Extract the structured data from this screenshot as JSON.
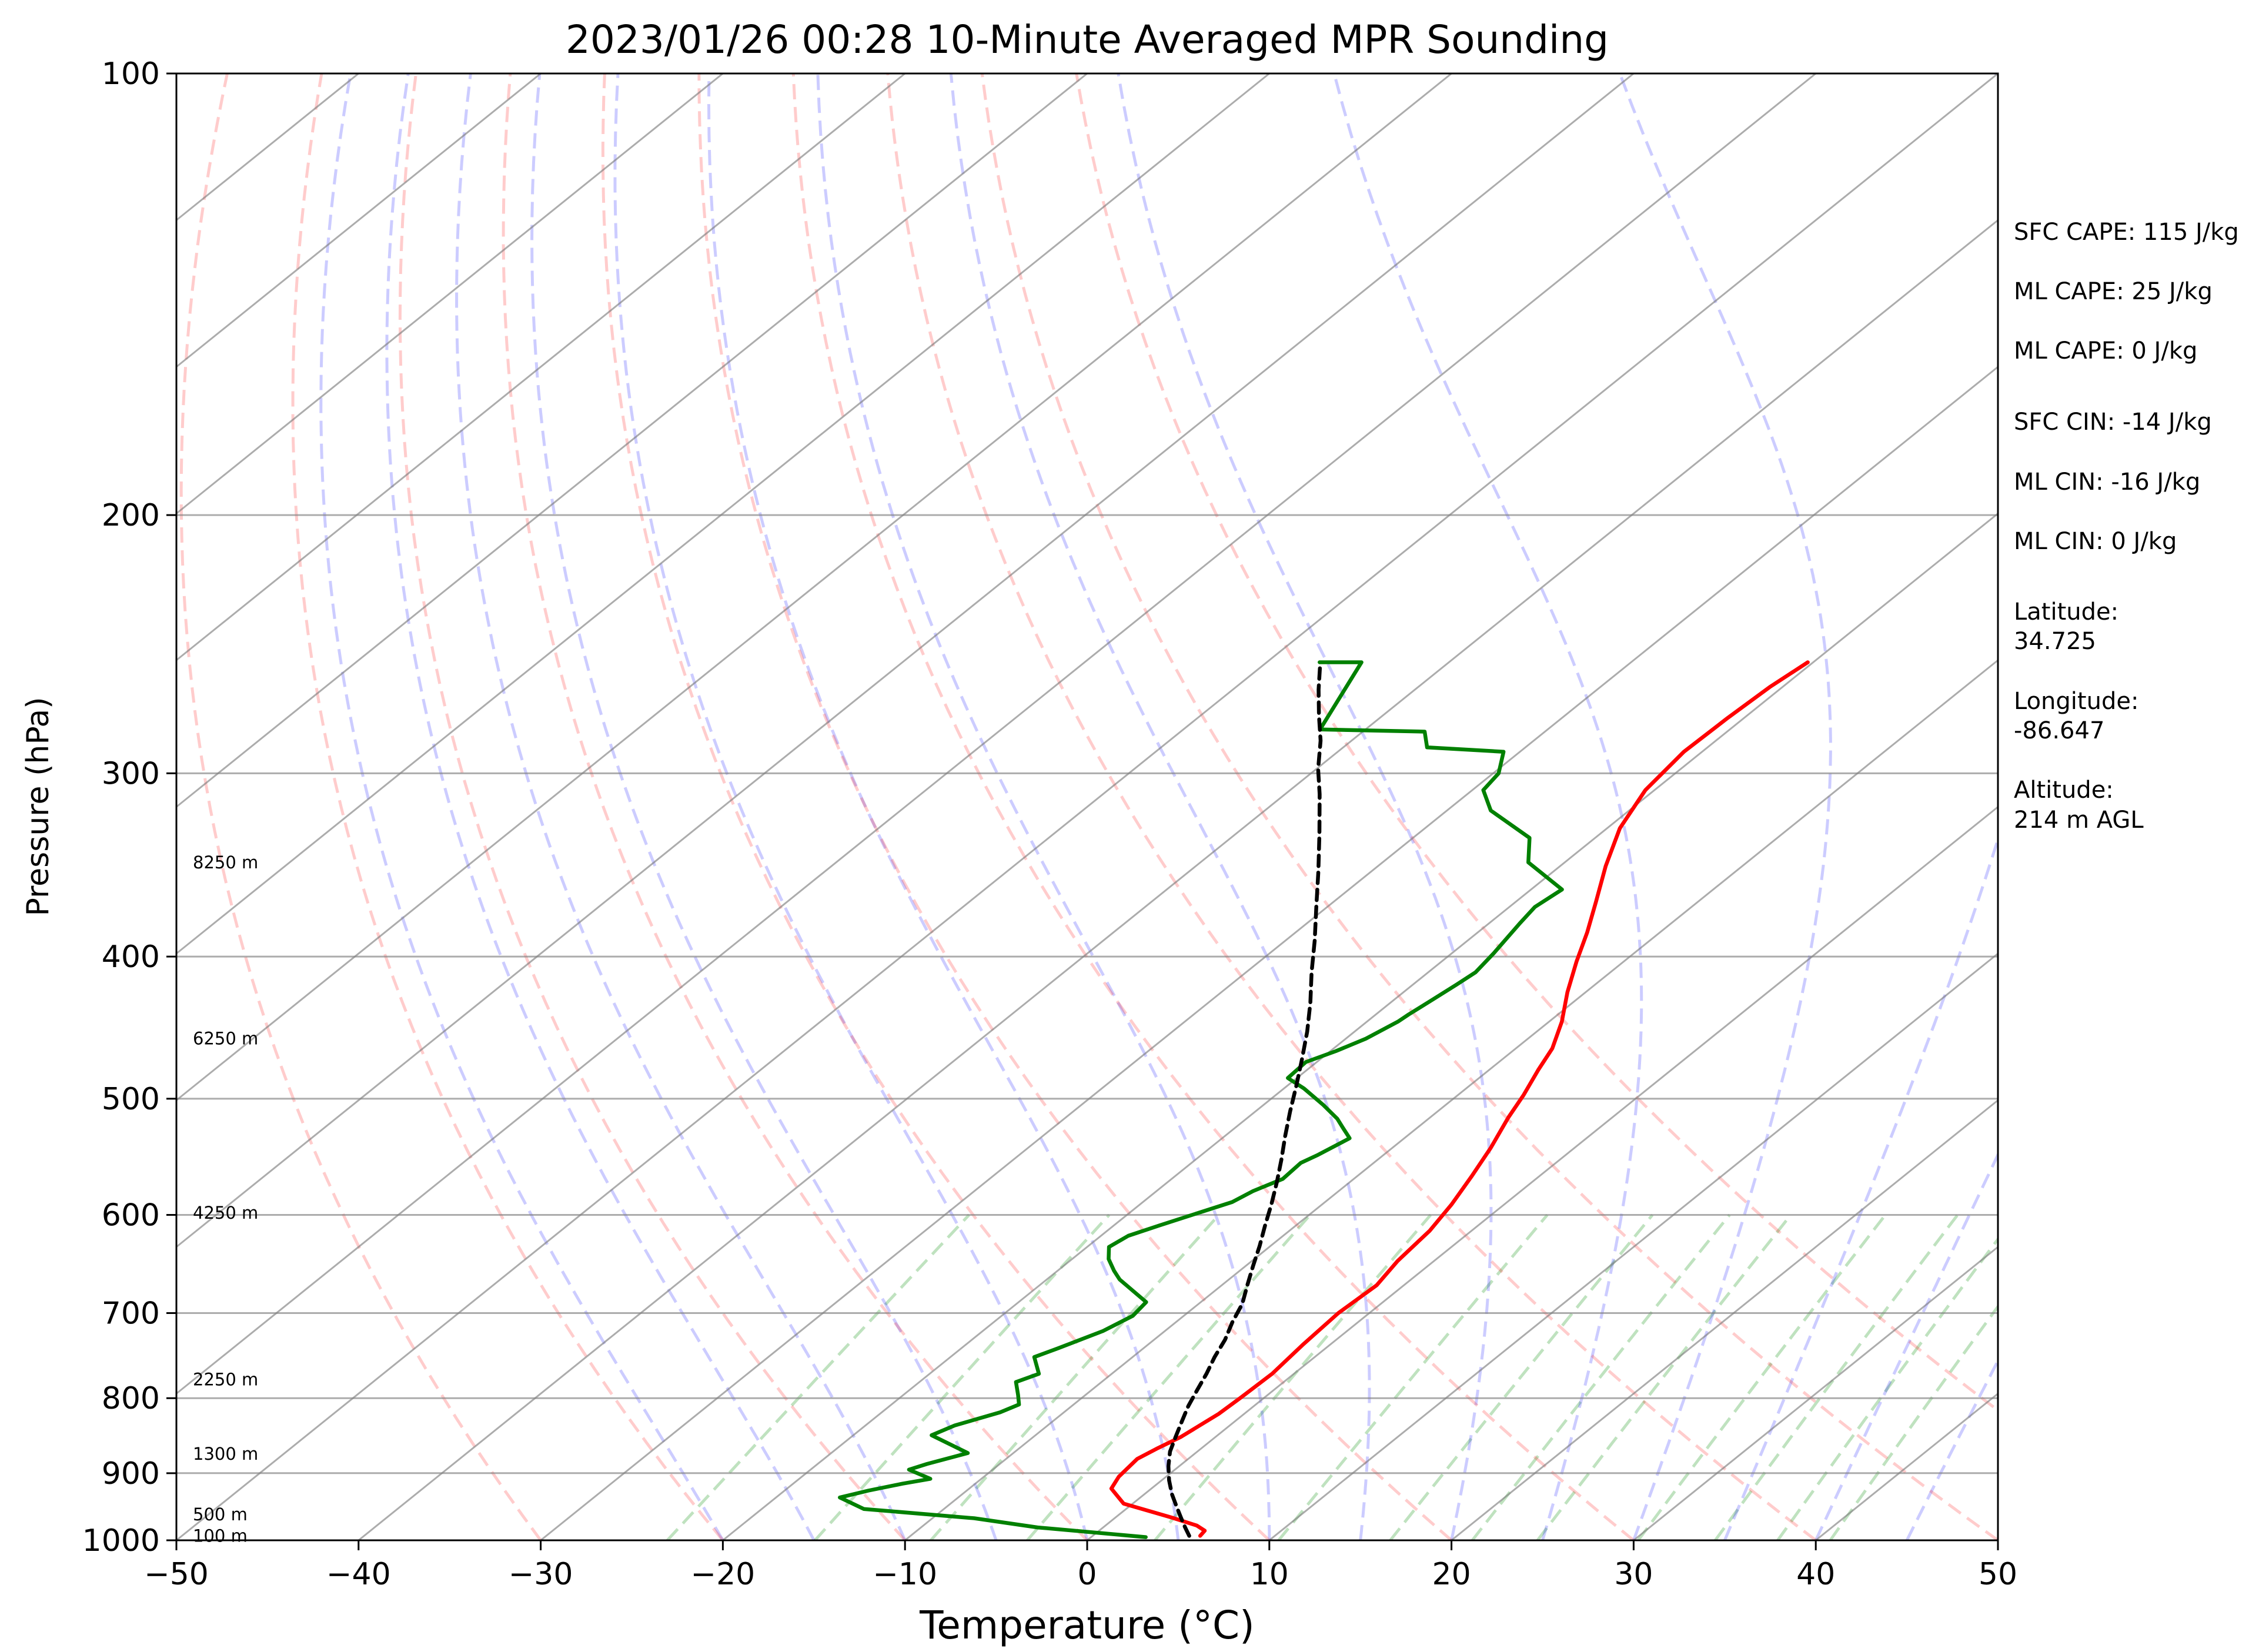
{
  "chart_data": {
    "type": "line",
    "title": "2023/01/26 00:28 10-Minute Averaged MPR Sounding",
    "xlabel": "Temperature (°C)",
    "ylabel": "Pressure (hPa)",
    "xlim": [
      -50,
      50
    ],
    "ylim": [
      1000,
      100
    ],
    "y_scale": "log",
    "grid": true,
    "x_ticks": [
      "−50",
      "−40",
      "−30",
      "−20",
      "−10",
      "0",
      "10",
      "20",
      "30",
      "40",
      "50"
    ],
    "y_ticks": [
      "100",
      "200",
      "300",
      "400",
      "500",
      "600",
      "700",
      "800",
      "900",
      "1000"
    ],
    "height_labels": [
      {
        "text": "8250 m",
        "pressure": 345
      },
      {
        "text": "6250 m",
        "pressure": 455
      },
      {
        "text": "4250 m",
        "pressure": 598
      },
      {
        "text": "2250 m",
        "pressure": 777
      },
      {
        "text": "1300 m",
        "pressure": 873
      },
      {
        "text": "500 m",
        "pressure": 960
      },
      {
        "text": "100 m",
        "pressure": 993
      }
    ],
    "info": [
      "SFC CAPE: 115 J/kg",
      "ML CAPE: 25 J/kg",
      "ML CAPE: 0 J/kg",
      "SFC CIN: -14 J/kg",
      "ML CIN: -16 J/kg",
      "ML CIN: 0 J/kg",
      "Latitude:",
      "34.725",
      "Longitude:",
      "-86.647",
      "Altitude:",
      "214 m AGL"
    ],
    "series": [
      {
        "id": "temperature",
        "color": "#ff0000",
        "points": [
          [
            5.9,
            993
          ],
          [
            5.8,
            985
          ],
          [
            5.0,
            977
          ],
          [
            3.1,
            965
          ],
          [
            -0.5,
            944
          ],
          [
            -2.2,
            922
          ],
          [
            -2.6,
            905
          ],
          [
            -2.8,
            880
          ],
          [
            -2.4,
            865
          ],
          [
            -1.9,
            850
          ],
          [
            -1.4,
            820
          ],
          [
            -1.3,
            800
          ],
          [
            -1.2,
            770
          ],
          [
            -1.5,
            735
          ],
          [
            -1.7,
            700
          ],
          [
            -1.5,
            670
          ],
          [
            -2.0,
            645
          ],
          [
            -2.3,
            615
          ],
          [
            -2.9,
            590
          ],
          [
            -3.7,
            565
          ],
          [
            -4.6,
            540
          ],
          [
            -5.7,
            515
          ],
          [
            -6.4,
            497
          ],
          [
            -7.3,
            478
          ],
          [
            -8.0,
            462
          ],
          [
            -9.3,
            443
          ],
          [
            -11.0,
            423
          ],
          [
            -12.6,
            403
          ],
          [
            -14.0,
            385
          ],
          [
            -15.6,
            367
          ],
          [
            -17.5,
            347
          ],
          [
            -19.3,
            327
          ],
          [
            -20.5,
            308
          ],
          [
            -21.0,
            290
          ],
          [
            -20.9,
            275
          ],
          [
            -20.7,
            262
          ],
          [
            -20.3,
            252
          ]
        ]
      },
      {
        "id": "dewpoint",
        "color": "#008000",
        "points": [
          [
            3.0,
            995
          ],
          [
            -3.6,
            980
          ],
          [
            -7.7,
            966
          ],
          [
            -14.4,
            952
          ],
          [
            -16.5,
            935
          ],
          [
            -15.4,
            925
          ],
          [
            -14.0,
            915
          ],
          [
            -12.8,
            908
          ],
          [
            -14.6,
            895
          ],
          [
            -14.0,
            887
          ],
          [
            -12.5,
            872
          ],
          [
            -15.7,
            848
          ],
          [
            -15.1,
            835
          ],
          [
            -13.5,
            818
          ],
          [
            -13.0,
            808
          ],
          [
            -13.7,
            796
          ],
          [
            -14.7,
            780
          ],
          [
            -14.0,
            770
          ],
          [
            -15.4,
            750
          ],
          [
            -14.7,
            740
          ],
          [
            -13.4,
            720
          ],
          [
            -12.8,
            703
          ],
          [
            -13.0,
            688
          ],
          [
            -16.0,
            664
          ],
          [
            -16.9,
            655
          ],
          [
            -18.0,
            643
          ],
          [
            -18.8,
            631
          ],
          [
            -18.5,
            620
          ],
          [
            -17.5,
            610
          ],
          [
            -15.1,
            588
          ],
          [
            -14.7,
            578
          ],
          [
            -13.9,
            567
          ],
          [
            -14.0,
            553
          ],
          [
            -13.6,
            546
          ],
          [
            -13.0,
            532
          ],
          [
            -14.0,
            524
          ],
          [
            -15.0,
            516
          ],
          [
            -16.7,
            505
          ],
          [
            -18.9,
            492
          ],
          [
            -20.5,
            484
          ],
          [
            -20.6,
            472
          ],
          [
            -19.7,
            464
          ],
          [
            -18.9,
            455
          ],
          [
            -18.3,
            443
          ],
          [
            -18.2,
            438
          ],
          [
            -17.9,
            428
          ],
          [
            -17.6,
            418
          ],
          [
            -17.4,
            410
          ],
          [
            -17.7,
            398
          ],
          [
            -18.3,
            380
          ],
          [
            -18.6,
            370
          ],
          [
            -18.3,
            360
          ],
          [
            -22.0,
            345
          ],
          [
            -23.6,
            332
          ],
          [
            -27.6,
            318
          ],
          [
            -29.4,
            308
          ],
          [
            -29.7,
            300
          ],
          [
            -30.9,
            290
          ],
          [
            -35.4,
            288
          ],
          [
            -36.6,
            281
          ],
          [
            -42.5,
            280
          ],
          [
            -44.8,
            252
          ],
          [
            -47.1,
            252
          ]
        ]
      },
      {
        "id": "parcel",
        "color": "#000000",
        "dash": true,
        "points": [
          [
            5.3,
            993
          ],
          [
            4.5,
            980
          ],
          [
            3.6,
            965
          ],
          [
            2.7,
            950
          ],
          [
            1.5,
            930
          ],
          [
            0.4,
            910
          ],
          [
            -0.6,
            890
          ],
          [
            -1.5,
            870
          ],
          [
            -2.2,
            850
          ],
          [
            -2.9,
            830
          ],
          [
            -3.6,
            810
          ],
          [
            -4.2,
            790
          ],
          [
            -4.8,
            770
          ],
          [
            -5.5,
            750
          ],
          [
            -6.1,
            730
          ],
          [
            -6.9,
            710
          ],
          [
            -7.6,
            690
          ],
          [
            -8.6,
            670
          ],
          [
            -9.6,
            650
          ],
          [
            -10.6,
            630
          ],
          [
            -11.7,
            610
          ],
          [
            -12.8,
            590
          ],
          [
            -14.0,
            570
          ],
          [
            -15.3,
            550
          ],
          [
            -16.7,
            530
          ],
          [
            -18.1,
            510
          ],
          [
            -19.5,
            490
          ],
          [
            -21.0,
            470
          ],
          [
            -22.6,
            450
          ],
          [
            -24.4,
            430
          ],
          [
            -26.4,
            410
          ],
          [
            -28.4,
            390
          ],
          [
            -30.6,
            370
          ],
          [
            -32.9,
            350
          ],
          [
            -35.4,
            330
          ],
          [
            -38.1,
            310
          ],
          [
            -39.9,
            298
          ],
          [
            -41.7,
            285
          ],
          [
            -43.5,
            274
          ],
          [
            -45.3,
            263
          ],
          [
            -46.9,
            253
          ]
        ]
      }
    ]
  }
}
